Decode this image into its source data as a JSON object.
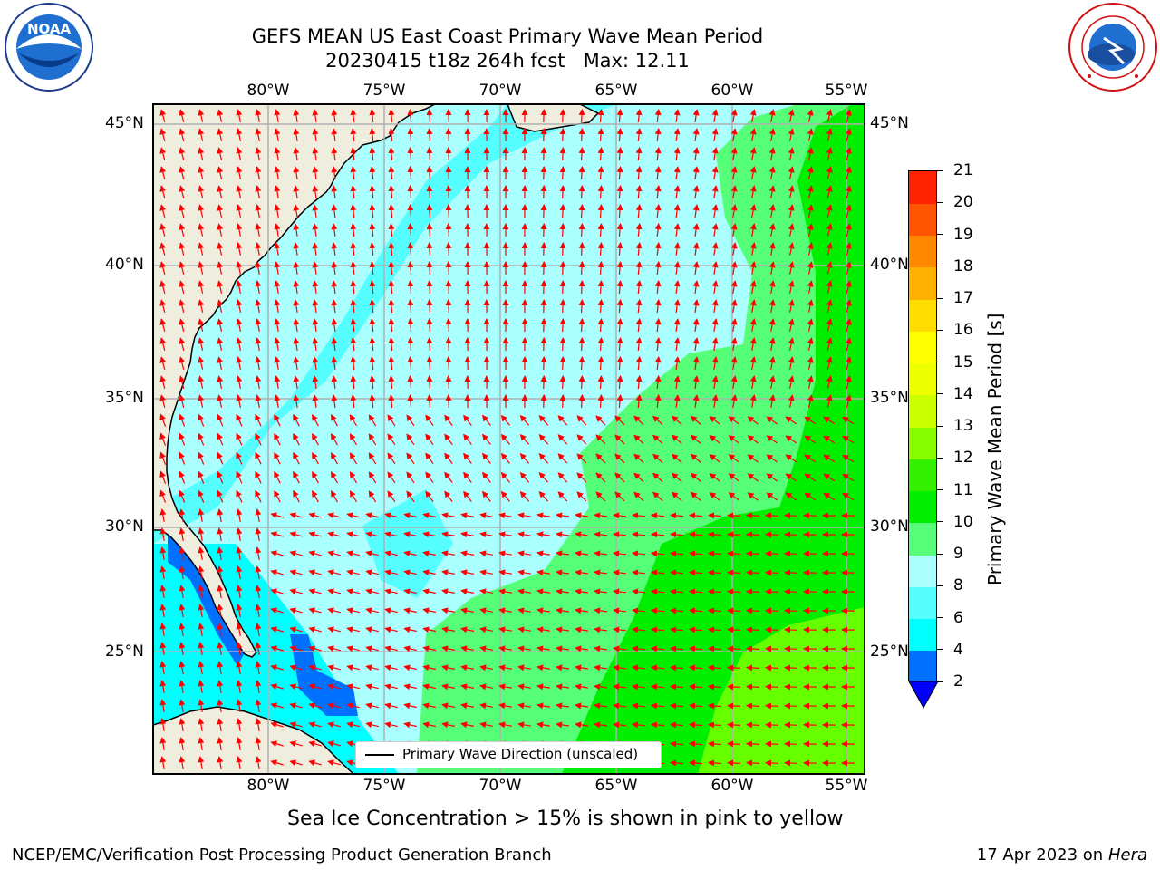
{
  "header": {
    "title_line1": "GEFS MEAN US East Coast Primary Wave Mean Period",
    "title_line2": "20230415 t18z 264h fcst   Max: 12.11"
  },
  "logos": {
    "left": "NOAA",
    "left_ring_text": "NATIONAL OCEANIC AND ATMOSPHERIC ADMINISTRATION · U.S. DEPARTMENT OF COMMERCE",
    "right_ring_text": "NATIONAL WEATHER SERVICE"
  },
  "map": {
    "lon_labels_top": [
      "80°W",
      "75°W",
      "70°W",
      "65°W",
      "60°W",
      "55°W"
    ],
    "lon_labels_bottom": [
      "80°W",
      "75°W",
      "70°W",
      "65°W",
      "60°W",
      "55°W"
    ],
    "lat_labels_left": [
      "45°N",
      "40°N",
      "35°N",
      "30°N",
      "25°N"
    ],
    "lat_labels_right": [
      "45°N",
      "40°N",
      "35°N",
      "30°N",
      "25°N"
    ],
    "legend_label": "Primary Wave Direction (unscaled)",
    "colors": {
      "land": "#efedde",
      "grid": "#b0b0b0",
      "arrow": "#ff0000",
      "blue": "#0070ff",
      "cyan": "#00ffff",
      "light_cyan": "#55ffff",
      "pale_cyan": "#aaffff",
      "light_green": "#55ff77",
      "green": "#00ee00",
      "yellow_green": "#66ff00"
    }
  },
  "colorbar": {
    "title": "Primary Wave Mean Period [s]",
    "ticks": [
      "2",
      "4",
      "6",
      "8",
      "9",
      "10",
      "11",
      "12",
      "13",
      "14",
      "15",
      "16",
      "17",
      "18",
      "19",
      "20",
      "21"
    ],
    "levels": [
      {
        "from": 2,
        "color": "#0070ff"
      },
      {
        "from": 4,
        "color": "#00ffff"
      },
      {
        "from": 6,
        "color": "#55ffff"
      },
      {
        "from": 8,
        "color": "#aaffff"
      },
      {
        "from": 9,
        "color": "#55ff77"
      },
      {
        "from": 10,
        "color": "#00ee00"
      },
      {
        "from": 11,
        "color": "#33f000"
      },
      {
        "from": 12,
        "color": "#88ff00"
      },
      {
        "from": 13,
        "color": "#ccff00"
      },
      {
        "from": 14,
        "color": "#eeff00"
      },
      {
        "from": 15,
        "color": "#ffff00"
      },
      {
        "from": 16,
        "color": "#ffdd00"
      },
      {
        "from": 17,
        "color": "#ffb000"
      },
      {
        "from": 18,
        "color": "#ff8800"
      },
      {
        "from": 19,
        "color": "#ff5500"
      },
      {
        "from": 20,
        "color": "#ff2200"
      }
    ],
    "extend_color": "#0000ff"
  },
  "footer": {
    "sea_ice_note": "Sea Ice Concentration > 15% is shown in pink to yellow",
    "branch": "NCEP/EMC/Verification Post Processing Product Generation Branch",
    "date": "17 Apr 2023 on ",
    "machine": "Hera"
  }
}
